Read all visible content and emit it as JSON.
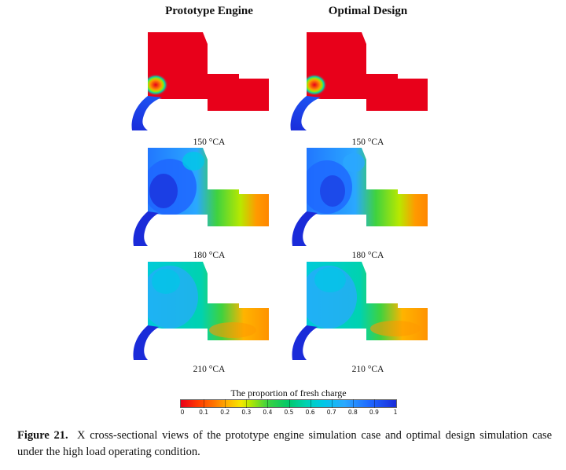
{
  "columns": [
    {
      "title": "Prototype Engine"
    },
    {
      "title": "Optimal Design"
    }
  ],
  "rows": [
    {
      "angle": "150 °CA"
    },
    {
      "angle": "180 °CA"
    },
    {
      "angle": "210 °CA"
    }
  ],
  "colorbar": {
    "title": "The proportion of fresh charge",
    "ticks": [
      "0",
      "0.1",
      "0.2",
      "0.3",
      "0.4",
      "0.5",
      "0.6",
      "0.7",
      "0.8",
      "0.9",
      "1"
    ],
    "colors": {
      "low": "#e8001a",
      "mid": "#3fd23f",
      "high": "#1a2bd9"
    }
  },
  "caption": {
    "label": "Figure 21.",
    "text": "X cross-sectional views of the prototype engine simulation case and optimal design simulation case under the high load operating condition."
  }
}
